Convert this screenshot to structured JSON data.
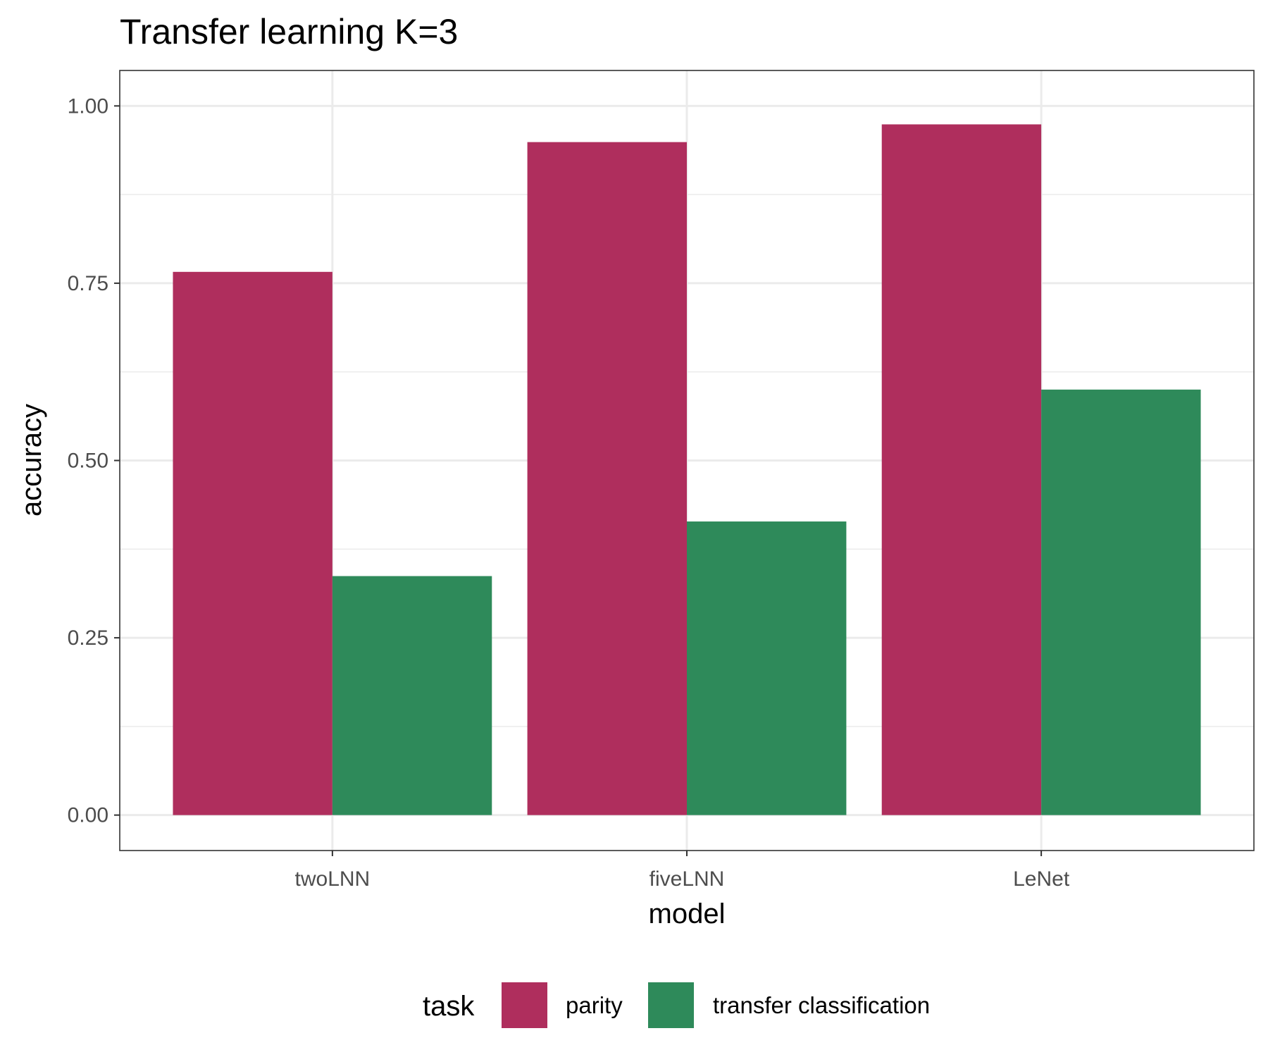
{
  "chart_data": {
    "type": "bar",
    "title": "Transfer learning  K=3",
    "xlabel": "model",
    "ylabel": "accuracy",
    "categories": [
      "twoLNN",
      "fiveLNN",
      "LeNet"
    ],
    "series": [
      {
        "name": "parity",
        "values": [
          0.766,
          0.949,
          0.974
        ],
        "color": "#af2e5d"
      },
      {
        "name": "transfer classification",
        "values": [
          0.337,
          0.414,
          0.6
        ],
        "color": "#2e8a5a"
      }
    ],
    "ylim": [
      -0.05,
      1.05
    ],
    "yticks": [
      0.0,
      0.25,
      0.5,
      0.75,
      1.0
    ],
    "ytick_labels": [
      "0.00",
      "0.25",
      "0.50",
      "0.75",
      "1.00"
    ],
    "grid": true,
    "legend": {
      "title": "task",
      "position": "bottom"
    }
  }
}
